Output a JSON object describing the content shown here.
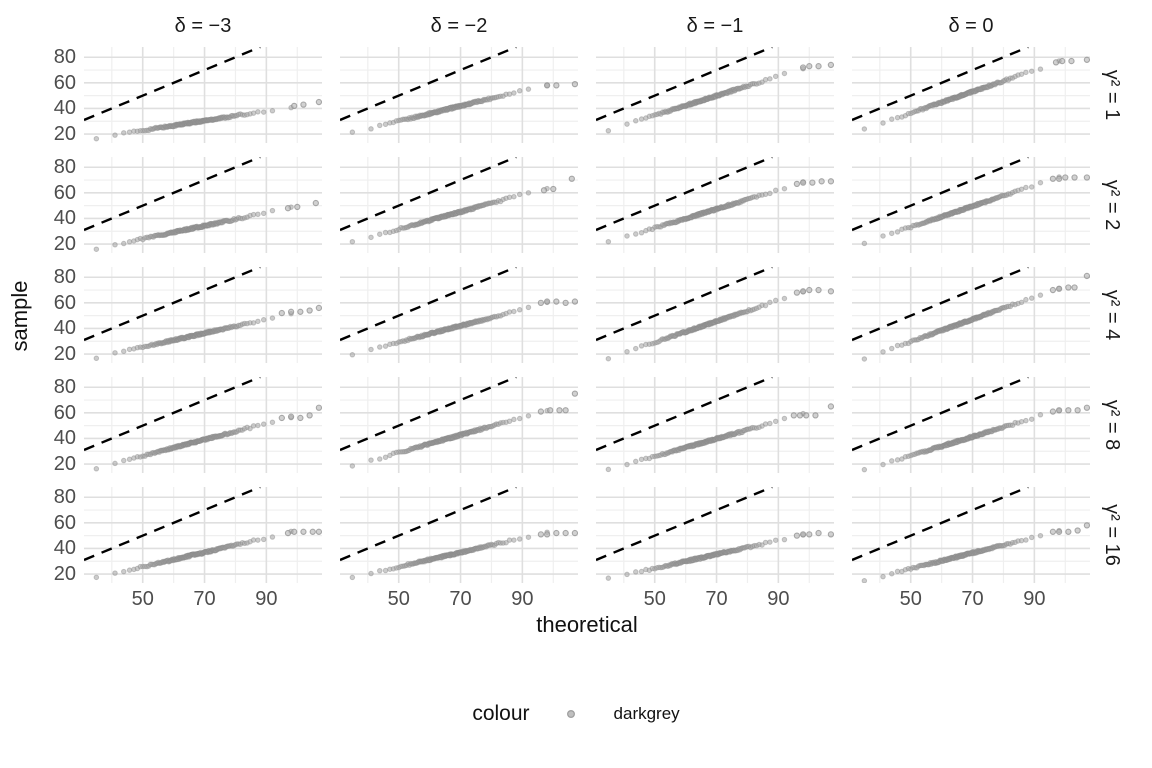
{
  "chart_data": {
    "type": "scatter",
    "subtype": "faceted-qq-plot",
    "xlabel": "theoretical",
    "ylabel": "sample",
    "x_ticks": [
      50,
      70,
      90
    ],
    "y_ticks": [
      20,
      40,
      60,
      80
    ],
    "x_range": [
      31,
      108
    ],
    "y_range": [
      13,
      88
    ],
    "grid": {
      "major_x": [
        50,
        70,
        90
      ],
      "minor_x": [
        40,
        60,
        80,
        100
      ],
      "major_y": [
        20,
        40,
        60,
        80
      ],
      "minor_y": [
        30,
        50,
        70
      ],
      "major_color": "#dfdfdf",
      "minor_color": "#efefef",
      "background": "#ffffff"
    },
    "facet": {
      "col_var": "delta",
      "col_labels": [
        "δ = −3",
        "δ = −2",
        "δ = −1",
        "δ = 0"
      ],
      "row_var": "gamma-squared",
      "row_labels": [
        "γ² = 1",
        "γ² = 2",
        "γ² = 4",
        "γ² = 8",
        "γ² = 16"
      ]
    },
    "reference_line": {
      "equation": "y = x",
      "style": "dashed",
      "color": "#000000"
    },
    "point_color_name": "darkgrey",
    "point_color": "#a9a9a9",
    "legend": {
      "title": "colour",
      "entries": [
        {
          "label": "darkgrey",
          "color": "#a9a9a9"
        }
      ],
      "position": "bottom"
    },
    "facets": [
      {
        "delta": -3,
        "gamma2": 1,
        "band": {
          "x": [
            40,
            95
          ],
          "y": [
            19,
            40
          ]
        },
        "outliers": [
          [
            99,
            42
          ],
          [
            102,
            43
          ],
          [
            107,
            45
          ]
        ]
      },
      {
        "delta": -2,
        "gamma2": 1,
        "band": {
          "x": [
            40,
            95
          ],
          "y": [
            24,
            57
          ]
        },
        "outliers": [
          [
            98,
            58
          ],
          [
            101,
            58
          ],
          [
            107,
            59
          ]
        ]
      },
      {
        "delta": -1,
        "gamma2": 1,
        "band": {
          "x": [
            40,
            95
          ],
          "y": [
            27,
            69
          ]
        },
        "outliers": [
          [
            98,
            72
          ],
          [
            100,
            73
          ],
          [
            103,
            73
          ],
          [
            107,
            74
          ]
        ]
      },
      {
        "delta": 0,
        "gamma2": 1,
        "band": {
          "x": [
            40,
            95
          ],
          "y": [
            28,
            74
          ]
        },
        "outliers": [
          [
            97,
            76
          ],
          [
            99,
            77
          ],
          [
            102,
            77
          ],
          [
            107,
            78
          ]
        ]
      },
      {
        "delta": -3,
        "gamma2": 2,
        "band": {
          "x": [
            40,
            95
          ],
          "y": [
            19,
            47
          ]
        },
        "outliers": [
          [
            97,
            48
          ],
          [
            100,
            49
          ],
          [
            106,
            52
          ]
        ]
      },
      {
        "delta": -2,
        "gamma2": 2,
        "band": {
          "x": [
            40,
            95
          ],
          "y": [
            25,
            62
          ]
        },
        "outliers": [
          [
            97,
            62
          ],
          [
            100,
            63
          ],
          [
            106,
            71
          ]
        ]
      },
      {
        "delta": -1,
        "gamma2": 2,
        "band": {
          "x": [
            40,
            95
          ],
          "y": [
            25,
            66
          ]
        },
        "outliers": [
          [
            96,
            67
          ],
          [
            98,
            68
          ],
          [
            101,
            68
          ],
          [
            104,
            69
          ],
          [
            107,
            69
          ]
        ]
      },
      {
        "delta": 0,
        "gamma2": 2,
        "band": {
          "x": [
            40,
            95
          ],
          "y": [
            25,
            70
          ]
        },
        "outliers": [
          [
            96,
            71
          ],
          [
            98,
            71
          ],
          [
            100,
            72
          ],
          [
            103,
            72
          ],
          [
            107,
            72
          ]
        ]
      },
      {
        "delta": -3,
        "gamma2": 4,
        "band": {
          "x": [
            40,
            95
          ],
          "y": [
            20,
            50
          ]
        },
        "outliers": [
          [
            95,
            52
          ],
          [
            98,
            53
          ],
          [
            101,
            53
          ],
          [
            104,
            54
          ],
          [
            107,
            56
          ]
        ]
      },
      {
        "delta": -2,
        "gamma2": 4,
        "band": {
          "x": [
            40,
            95
          ],
          "y": [
            23,
            58
          ]
        },
        "outliers": [
          [
            96,
            60
          ],
          [
            98,
            61
          ],
          [
            101,
            61
          ],
          [
            104,
            60
          ],
          [
            107,
            61
          ]
        ]
      },
      {
        "delta": -1,
        "gamma2": 4,
        "band": {
          "x": [
            40,
            95
          ],
          "y": [
            21,
            66
          ]
        },
        "outliers": [
          [
            96,
            68
          ],
          [
            98,
            69
          ],
          [
            100,
            70
          ],
          [
            103,
            70
          ],
          [
            107,
            69
          ]
        ]
      },
      {
        "delta": 0,
        "gamma2": 4,
        "band": {
          "x": [
            40,
            95
          ],
          "y": [
            21,
            69
          ]
        },
        "outliers": [
          [
            96,
            70
          ],
          [
            98,
            71
          ],
          [
            101,
            72
          ],
          [
            103,
            72
          ],
          [
            107,
            81
          ]
        ]
      },
      {
        "delta": -3,
        "gamma2": 8,
        "band": {
          "x": [
            40,
            95
          ],
          "y": [
            20,
            55
          ]
        },
        "outliers": [
          [
            95,
            56
          ],
          [
            98,
            57
          ],
          [
            101,
            56
          ],
          [
            104,
            58
          ],
          [
            107,
            64
          ]
        ]
      },
      {
        "delta": -2,
        "gamma2": 8,
        "band": {
          "x": [
            40,
            95
          ],
          "y": [
            22,
            60
          ]
        },
        "outliers": [
          [
            96,
            61
          ],
          [
            99,
            62
          ],
          [
            102,
            62
          ],
          [
            104,
            62
          ],
          [
            107,
            75
          ]
        ]
      },
      {
        "delta": -1,
        "gamma2": 8,
        "band": {
          "x": [
            40,
            95
          ],
          "y": [
            19,
            57
          ]
        },
        "outliers": [
          [
            95,
            58
          ],
          [
            97,
            58
          ],
          [
            99,
            58
          ],
          [
            102,
            58
          ],
          [
            107,
            65
          ]
        ]
      },
      {
        "delta": 0,
        "gamma2": 8,
        "band": {
          "x": [
            40,
            95
          ],
          "y": [
            19,
            60
          ]
        },
        "outliers": [
          [
            96,
            61
          ],
          [
            98,
            62
          ],
          [
            101,
            62
          ],
          [
            104,
            62
          ],
          [
            107,
            64
          ]
        ]
      },
      {
        "delta": -3,
        "gamma2": 16,
        "band": {
          "x": [
            40,
            95
          ],
          "y": [
            20,
            51
          ]
        },
        "outliers": [
          [
            97,
            52
          ],
          [
            99,
            53
          ],
          [
            102,
            53
          ],
          [
            105,
            53
          ],
          [
            107,
            53
          ]
        ]
      },
      {
        "delta": -2,
        "gamma2": 16,
        "band": {
          "x": [
            40,
            95
          ],
          "y": [
            20,
            51
          ]
        },
        "outliers": [
          [
            96,
            51
          ],
          [
            98,
            51
          ],
          [
            101,
            52
          ],
          [
            104,
            52
          ],
          [
            107,
            52
          ]
        ]
      },
      {
        "delta": -1,
        "gamma2": 16,
        "band": {
          "x": [
            40,
            95
          ],
          "y": [
            19,
            49
          ]
        },
        "outliers": [
          [
            96,
            50
          ],
          [
            98,
            51
          ],
          [
            100,
            51
          ],
          [
            103,
            52
          ],
          [
            107,
            51
          ]
        ]
      },
      {
        "delta": 0,
        "gamma2": 16,
        "band": {
          "x": [
            40,
            95
          ],
          "y": [
            18,
            52
          ]
        },
        "outliers": [
          [
            96,
            53
          ],
          [
            98,
            53
          ],
          [
            101,
            53
          ],
          [
            104,
            54
          ],
          [
            107,
            58
          ]
        ]
      }
    ]
  }
}
